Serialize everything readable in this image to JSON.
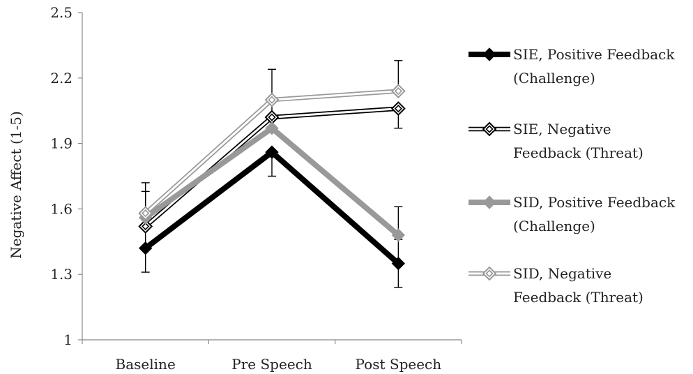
{
  "chart_data": {
    "type": "line",
    "title": "",
    "xlabel": "",
    "ylabel": "Negative Affect (1-5)",
    "categories": [
      "Baseline",
      "Pre Speech",
      "Post Speech"
    ],
    "ylim": [
      1,
      2.5
    ],
    "yticks": [
      "1",
      "1.3",
      "1.6",
      "1.9",
      "2.2",
      "2.5"
    ],
    "grid": false,
    "legend_position": "right",
    "series": [
      {
        "name": "SIE, Positive Feedback (Challenge)",
        "legend_lines": [
          "SIE, Positive Feedback",
          "(Challenge)"
        ],
        "values": [
          1.42,
          1.86,
          1.35
        ],
        "error_upper": [
          1.68,
          null,
          1.46
        ],
        "error_lower": [
          1.31,
          1.75,
          1.24
        ],
        "color": "#000000",
        "style": "thick-black",
        "marker": "filled-diamond"
      },
      {
        "name": "SIE, Negative Feedback (Threat)",
        "legend_lines": [
          "SIE, Negative",
          "Feedback (Threat)"
        ],
        "values": [
          1.52,
          2.02,
          2.06
        ],
        "error_upper": [
          1.72,
          2.24,
          null
        ],
        "error_lower": [
          null,
          null,
          1.97
        ],
        "color": "#000000",
        "style": "double-black",
        "marker": "hollow-diamond"
      },
      {
        "name": "SID, Positive Feedback (Challenge)",
        "legend_lines": [
          "SID, Positive Feedback",
          "(Challenge)"
        ],
        "values": [
          1.56,
          1.97,
          1.48
        ],
        "error_upper": [
          null,
          null,
          1.61
        ],
        "error_lower": [
          null,
          null,
          null
        ],
        "color": "#999999",
        "style": "thick-gray",
        "marker": "filled-diamond"
      },
      {
        "name": "SID, Negative Feedback (Threat)",
        "legend_lines": [
          "SID, Negative",
          "Feedback (Threat)"
        ],
        "values": [
          1.58,
          2.1,
          2.14
        ],
        "error_upper": [
          null,
          null,
          2.28
        ],
        "error_lower": [
          null,
          null,
          null
        ],
        "color": "#999999",
        "style": "double-gray",
        "marker": "hollow-diamond"
      }
    ]
  }
}
